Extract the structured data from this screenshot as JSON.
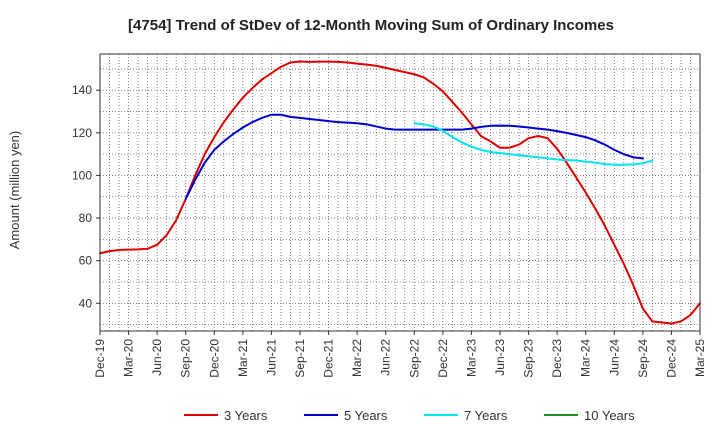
{
  "chart_data": {
    "type": "line",
    "title": "[4754]  Trend of StDev of 12-Month Moving Sum of Ordinary Incomes",
    "xlabel": "",
    "ylabel": "Amount (million yen)",
    "ylim": [
      27,
      157
    ],
    "yticks": [
      40,
      60,
      80,
      100,
      120,
      140
    ],
    "x_range": [
      "Dec-19",
      "Mar-25"
    ],
    "x_tick_labels": [
      "Dec-19",
      "Mar-20",
      "Jun-20",
      "Sep-20",
      "Dec-20",
      "Mar-21",
      "Jun-21",
      "Sep-21",
      "Dec-21",
      "Mar-22",
      "Jun-22",
      "Sep-22",
      "Dec-22",
      "Mar-23",
      "Jun-23",
      "Sep-23",
      "Dec-23",
      "Mar-24",
      "Jun-24",
      "Sep-24",
      "Dec-24",
      "Mar-25"
    ],
    "grid": true,
    "legend_position": "bottom",
    "series": [
      {
        "name": "3 Years",
        "color": "#dd0000",
        "start_month": 0,
        "values": [
          63.5,
          64.5,
          65,
          65.2,
          65.3,
          65.6,
          67.5,
          72,
          79,
          89,
          100,
          110,
          118,
          125,
          131,
          136.5,
          141,
          145,
          148,
          151,
          153,
          153.5,
          153.3,
          153.4,
          153.4,
          153.3,
          153,
          152.5,
          152,
          151.5,
          150.5,
          149.5,
          148.5,
          147.5,
          146,
          143,
          139.5,
          134.5,
          129.5,
          124,
          118.5,
          116,
          113,
          113,
          114.5,
          117.5,
          118.5,
          117.5,
          112.5,
          106,
          99,
          92,
          84.5,
          76.5,
          67.5,
          58.5,
          48.5,
          37.5,
          31.5,
          31,
          30.5,
          31.5,
          34.5,
          40
        ]
      },
      {
        "name": "5 Years",
        "color": "#0000cc",
        "start_month": 9,
        "values": [
          89,
          98,
          106,
          112,
          116,
          119.5,
          122.5,
          125,
          127,
          128.5,
          128.5,
          127.5,
          127,
          126.5,
          126,
          125.5,
          125,
          124.8,
          124.5,
          124,
          123,
          122,
          121.5,
          121.5,
          121.5,
          121.5,
          121.5,
          121.5,
          121.5,
          121.5,
          122,
          122.8,
          123.3,
          123.4,
          123.3,
          123,
          122.5,
          122,
          121.5,
          120.8,
          120,
          119,
          118,
          116.5,
          114.5,
          112,
          110,
          108.5,
          108
        ]
      },
      {
        "name": "7 Years",
        "color": "#00e5ee",
        "start_month": 33,
        "values": [
          124.5,
          124,
          123,
          121,
          118,
          115.5,
          113.5,
          112,
          111,
          110.5,
          110,
          109.5,
          109,
          108.5,
          108,
          107.5,
          107.2,
          107,
          106.5,
          106,
          105.3,
          105,
          105,
          105.2,
          105.7,
          107
        ]
      },
      {
        "name": "10 Years",
        "color": "#228b22",
        "start_month": 0,
        "values": []
      }
    ]
  }
}
